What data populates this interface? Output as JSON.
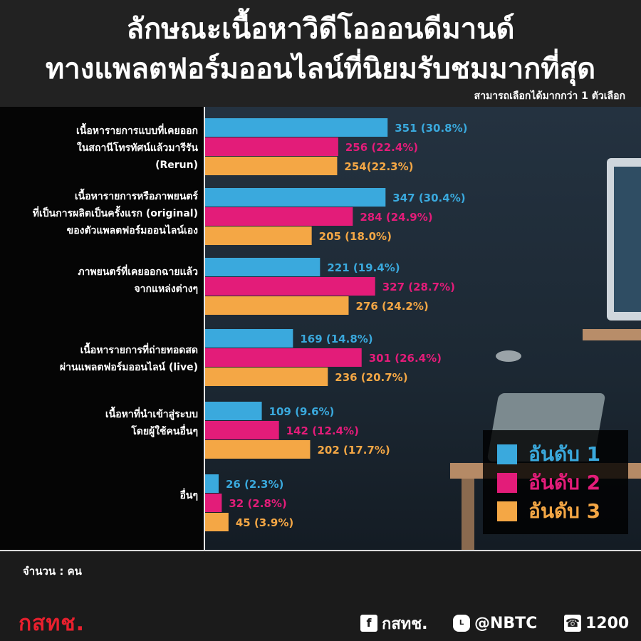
{
  "header": {
    "title_line1": "ลักษณะเนื้อหาวิดีโอออนดีมานด์",
    "title_line2": "ทางแพลตฟอร์มออนไลน์ที่นิยมรับชมมากที่สุด",
    "note": "สามารถเลือกได้มากกว่า 1 ตัวเลือก"
  },
  "colors": {
    "rank1": "#3aa9dd",
    "rank2": "#e31c79",
    "rank3": "#f4a745"
  },
  "chart_data": {
    "type": "bar",
    "orientation": "horizontal",
    "categories": [
      [
        "เนื้อหารายการแบบที่เคยออก",
        "ในสถานีโทรทัศน์แล้วมารีรัน",
        "(Rerun)"
      ],
      [
        "เนื้อหารายการหรือภาพยนตร์",
        "ที่เป็นการผลิตเป็นครั้งแรก (original)",
        "ของตัวแพลตฟอร์มออนไลน์เอง"
      ],
      [
        "ภาพยนตร์ที่เคยออกฉายแล้ว",
        "จากแหล่งต่างๆ"
      ],
      [
        "เนื้อหารายการที่ถ่ายทอดสด",
        "ผ่านแพลตฟอร์มออนไลน์ (live)"
      ],
      [
        "เนื้อหาที่นำเข้าสู่ระบบ",
        "โดยผู้ใช้คนอื่นๆ"
      ],
      [
        "อื่นๆ"
      ]
    ],
    "series": [
      {
        "name": "อันดับ 1",
        "values": [
          351,
          347,
          221,
          169,
          109,
          26
        ],
        "labels": [
          "351 (30.8%)",
          "347 (30.4%)",
          "221 (19.4%)",
          "169 (14.8%)",
          "109 (9.6%)",
          "26 (2.3%)"
        ]
      },
      {
        "name": "อันดับ 2",
        "values": [
          256,
          284,
          327,
          301,
          142,
          32
        ],
        "labels": [
          "256 (22.4%)",
          "284 (24.9%)",
          "327 (28.7%)",
          "301 (26.4%)",
          "142 (12.4%)",
          "32 (2.8%)"
        ]
      },
      {
        "name": "อันดับ 3",
        "values": [
          254,
          205,
          276,
          236,
          202,
          45
        ],
        "labels": [
          "254(22.3%)",
          "205 (18.0%)",
          "276 (24.2%)",
          "236 (20.7%)",
          "202 (17.7%)",
          "45 (3.9%)"
        ]
      }
    ],
    "legend_position": "bottom-right",
    "grid": false
  },
  "footer": {
    "unit": "จำนวน : คน",
    "logo": "กสทช.",
    "facebook": "กสทช.",
    "line": "@NBTC",
    "phone": "1200",
    "facebook_icon": "facebook-icon",
    "line_icon": "line-icon",
    "phone_icon": "phone-icon"
  }
}
